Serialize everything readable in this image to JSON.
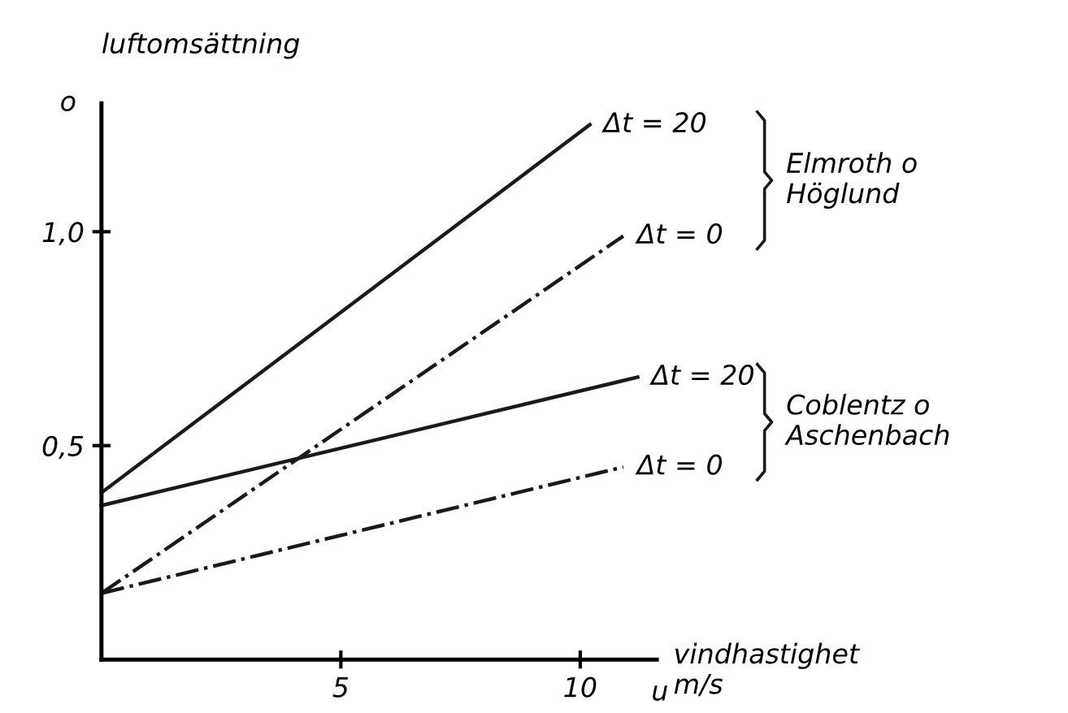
{
  "chart_data": {
    "type": "line",
    "xlabel": "vindhastighet\nm/s",
    "ylabel": "luftomsättning",
    "xlim": [
      0,
      11.6
    ],
    "ylim": [
      0,
      1.3
    ],
    "xticks": [
      5,
      10
    ],
    "yticks": [
      {
        "value": 0.5,
        "label": "0,5"
      },
      {
        "value": 1.0,
        "label": "1,0"
      }
    ],
    "grid": false,
    "marker": "none",
    "series": [
      {
        "name": "Δt = 20",
        "color": "#1a1a1a",
        "line_style": "solid",
        "x": [
          0,
          10.2
        ],
        "values": [
          0.39,
          1.25
        ]
      },
      {
        "name": "Δt = 0",
        "color": "#1a1a1a",
        "line_style": "dashdot",
        "x": [
          0,
          10.9
        ],
        "values": [
          0.155,
          0.99
        ]
      },
      {
        "name": "Δt = 20",
        "color": "#1a1a1a",
        "line_style": "solid",
        "x": [
          0,
          11.2
        ],
        "values": [
          0.36,
          0.66
        ]
      },
      {
        "name": "Δt = 0",
        "color": "#1a1a1a",
        "line_style": "dashdot",
        "x": [
          0,
          10.9
        ],
        "values": [
          0.155,
          0.45
        ]
      }
    ],
    "annotations": [
      "o",
      "u",
      "Elmroth o\nHöglund",
      "Coblentz o\nAschenbach"
    ]
  }
}
